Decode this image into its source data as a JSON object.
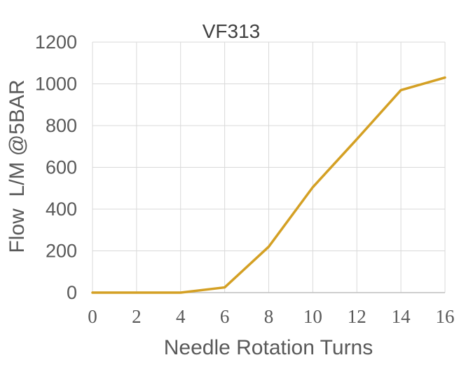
{
  "chart_data": {
    "type": "line",
    "title": "VF313",
    "xlabel": "Needle Rotation Turns",
    "ylabel": "Flow  L/M @5BAR",
    "xlim": [
      0,
      16
    ],
    "ylim": [
      0,
      1200
    ],
    "xticks": [
      "0",
      "2",
      "4",
      "6",
      "8",
      "10",
      "12",
      "14",
      "16"
    ],
    "yticks": [
      "0",
      "200",
      "400",
      "600",
      "800",
      "1000",
      "1200"
    ],
    "grid": true,
    "legend": "none",
    "series": [
      {
        "color": "#d4a024",
        "x": [
          0,
          2,
          4,
          6,
          8,
          10,
          12,
          14,
          16
        ],
        "y": [
          0,
          0,
          0,
          25,
          220,
          505,
          735,
          970,
          1030
        ]
      }
    ]
  }
}
